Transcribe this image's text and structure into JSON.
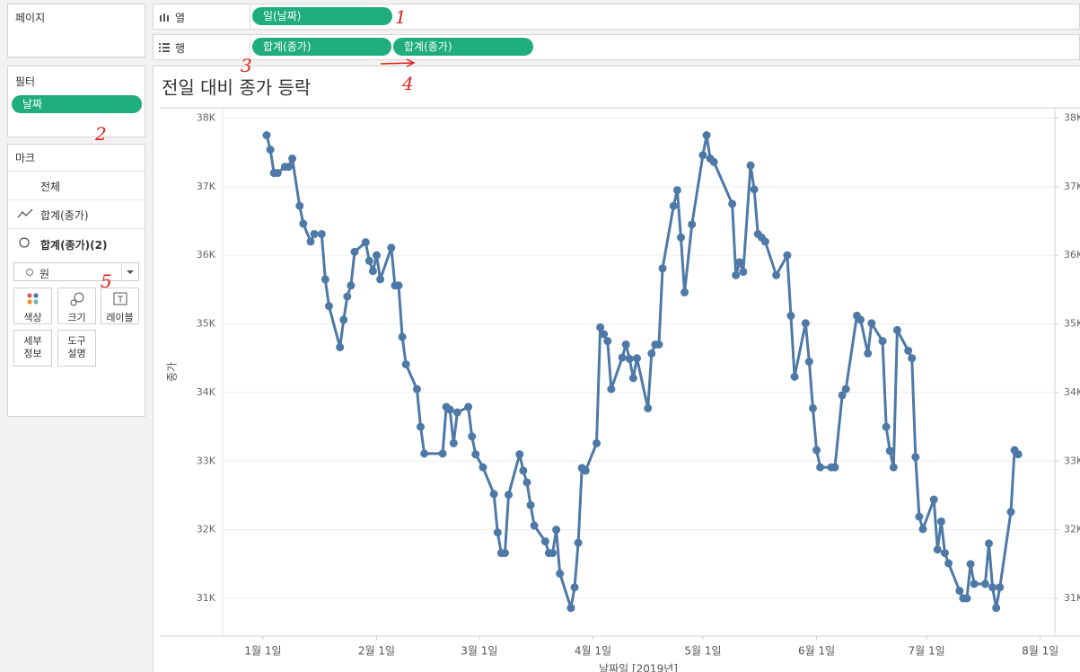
{
  "shelves": {
    "pages": "페이지",
    "columns": {
      "label": "열",
      "pills": [
        "일(날짜)"
      ]
    },
    "rows": {
      "label": "행",
      "pills": [
        "합계(종가)",
        "합계(종가)"
      ]
    }
  },
  "filters": {
    "title": "필터",
    "pills": [
      "날짜"
    ]
  },
  "marks": {
    "title": "마크",
    "cards": [
      "전체",
      "합계(종가)",
      "합계(종가)(2)"
    ],
    "mark_type": "원",
    "buttons": [
      "색상",
      "크기",
      "레이블",
      "세부 정보",
      "도구 설명"
    ]
  },
  "annotations": [
    "1",
    "2",
    "3",
    "4",
    "5"
  ],
  "chart_data": {
    "type": "line",
    "title": "전일 대비 종가 등락",
    "y_label": "종가",
    "x_label": "날짜일 [2019년]",
    "x": [
      "2019-01-02",
      "2019-01-03",
      "2019-01-04",
      "2019-01-05",
      "2019-01-07",
      "2019-01-08",
      "2019-01-09",
      "2019-01-11",
      "2019-01-12",
      "2019-01-14",
      "2019-01-15",
      "2019-01-17",
      "2019-01-18",
      "2019-01-19",
      "2019-01-22",
      "2019-01-23",
      "2019-01-24",
      "2019-01-25",
      "2019-01-26",
      "2019-01-29",
      "2019-01-30",
      "2019-01-31",
      "2019-02-01",
      "2019-02-02",
      "2019-02-05",
      "2019-02-06",
      "2019-02-07",
      "2019-02-08",
      "2019-02-09",
      "2019-02-12",
      "2019-02-13",
      "2019-02-14",
      "2019-02-19",
      "2019-02-20",
      "2019-02-21",
      "2019-02-22",
      "2019-02-23",
      "2019-02-26",
      "2019-02-27",
      "2019-02-28",
      "2019-03-02",
      "2019-03-05",
      "2019-03-06",
      "2019-03-07",
      "2019-03-08",
      "2019-03-09",
      "2019-03-12",
      "2019-03-13",
      "2019-03-14",
      "2019-03-15",
      "2019-03-16",
      "2019-03-19",
      "2019-03-20",
      "2019-03-21",
      "2019-03-22",
      "2019-03-23",
      "2019-03-26",
      "2019-03-27",
      "2019-03-28",
      "2019-03-29",
      "2019-03-30",
      "2019-04-02",
      "2019-04-03",
      "2019-04-04",
      "2019-04-05",
      "2019-04-06",
      "2019-04-09",
      "2019-04-10",
      "2019-04-11",
      "2019-04-12",
      "2019-04-13",
      "2019-04-16",
      "2019-04-17",
      "2019-04-18",
      "2019-04-19",
      "2019-04-20",
      "2019-04-23",
      "2019-04-24",
      "2019-04-25",
      "2019-04-26",
      "2019-04-28",
      "2019-05-01",
      "2019-05-02",
      "2019-05-03",
      "2019-05-04",
      "2019-05-09",
      "2019-05-10",
      "2019-05-11",
      "2019-05-12",
      "2019-05-14",
      "2019-05-15",
      "2019-05-16",
      "2019-05-17",
      "2019-05-18",
      "2019-05-21",
      "2019-05-24",
      "2019-05-25",
      "2019-05-26",
      "2019-05-29",
      "2019-05-30",
      "2019-05-31",
      "2019-06-01",
      "2019-06-02",
      "2019-06-05",
      "2019-06-06",
      "2019-06-08",
      "2019-06-09",
      "2019-06-12",
      "2019-06-13",
      "2019-06-15",
      "2019-06-16",
      "2019-06-19",
      "2019-06-20",
      "2019-06-21",
      "2019-06-22",
      "2019-06-23",
      "2019-06-26",
      "2019-06-27",
      "2019-06-28",
      "2019-06-29",
      "2019-06-30",
      "2019-07-03",
      "2019-07-04",
      "2019-07-05",
      "2019-07-06",
      "2019-07-07",
      "2019-07-10",
      "2019-07-11",
      "2019-07-12",
      "2019-07-13",
      "2019-07-14",
      "2019-07-17",
      "2019-07-18",
      "2019-07-19",
      "2019-07-20",
      "2019-07-21",
      "2019-07-24",
      "2019-07-25",
      "2019-07-26"
    ],
    "series": [
      {
        "color": "#4e79a7",
        "values": [
          37750,
          37540,
          37200,
          37200,
          37290,
          37290,
          37410,
          36720,
          36460,
          36200,
          36310,
          36310,
          35650,
          35260,
          34660,
          35060,
          35400,
          35560,
          36050,
          36190,
          35920,
          35770,
          36000,
          35650,
          36110,
          35560,
          35560,
          34810,
          34410,
          34050,
          33500,
          33110,
          33110,
          33790,
          33750,
          33260,
          33710,
          33790,
          33360,
          33100,
          32910,
          32520,
          31960,
          31660,
          31660,
          32510,
          33100,
          32860,
          32690,
          32360,
          32060,
          31830,
          31660,
          31660,
          32000,
          31360,
          30860,
          31160,
          31810,
          32900,
          32860,
          33260,
          34950,
          34850,
          34750,
          34050,
          34510,
          34700,
          34490,
          34210,
          34500,
          33770,
          34570,
          34700,
          34700,
          35810,
          36720,
          36950,
          36260,
          35460,
          36450,
          37460,
          37750,
          37410,
          37360,
          36750,
          35710,
          35900,
          35760,
          37310,
          36960,
          36310,
          36260,
          36200,
          35710,
          36000,
          35120,
          34230,
          35010,
          34450,
          33770,
          33160,
          32910,
          32910,
          32910,
          33960,
          34050,
          35120,
          35060,
          34570,
          35010,
          34750,
          33500,
          33150,
          32910,
          34910,
          34610,
          34500,
          33060,
          32190,
          32010,
          32440,
          31710,
          32120,
          31660,
          31510,
          31110,
          31000,
          31000,
          31500,
          31210,
          31210,
          31800,
          31160,
          30860,
          31160,
          32260,
          33160,
          33100
        ]
      }
    ],
    "xlim": [
      "2018-12-21",
      "2019-08-05"
    ],
    "xticks": [
      {
        "value": "2019-01-01",
        "label": "1월 1일"
      },
      {
        "value": "2019-02-01",
        "label": "2월 1일"
      },
      {
        "value": "2019-03-01",
        "label": "3월 1일"
      },
      {
        "value": "2019-04-01",
        "label": "4월 1일"
      },
      {
        "value": "2019-05-01",
        "label": "5월 1일"
      },
      {
        "value": "2019-06-01",
        "label": "6월 1일"
      },
      {
        "value": "2019-07-01",
        "label": "7월 1일"
      },
      {
        "value": "2019-08-01",
        "label": "8월 1일"
      }
    ],
    "ylim": [
      30450,
      38150
    ],
    "yticks": [
      {
        "value": 31000,
        "label": "31K"
      },
      {
        "value": 32000,
        "label": "32K"
      },
      {
        "value": 33000,
        "label": "33K"
      },
      {
        "value": 34000,
        "label": "34K"
      },
      {
        "value": 35000,
        "label": "35K"
      },
      {
        "value": 36000,
        "label": "36K"
      },
      {
        "value": 37000,
        "label": "37K"
      },
      {
        "value": 38000,
        "label": "38K"
      }
    ],
    "y2lim": [
      30450,
      38150
    ],
    "y2ticks": [
      {
        "value": 31000,
        "label": "31K"
      },
      {
        "value": 32000,
        "label": "32K"
      },
      {
        "value": 33000,
        "label": "33K"
      },
      {
        "value": 34000,
        "label": "34K"
      },
      {
        "value": 35000,
        "label": "35K"
      },
      {
        "value": 36000,
        "label": "36K"
      },
      {
        "value": 37000,
        "label": "37K"
      },
      {
        "value": 38000,
        "label": "38K"
      }
    ],
    "grid": true,
    "markers": true
  }
}
